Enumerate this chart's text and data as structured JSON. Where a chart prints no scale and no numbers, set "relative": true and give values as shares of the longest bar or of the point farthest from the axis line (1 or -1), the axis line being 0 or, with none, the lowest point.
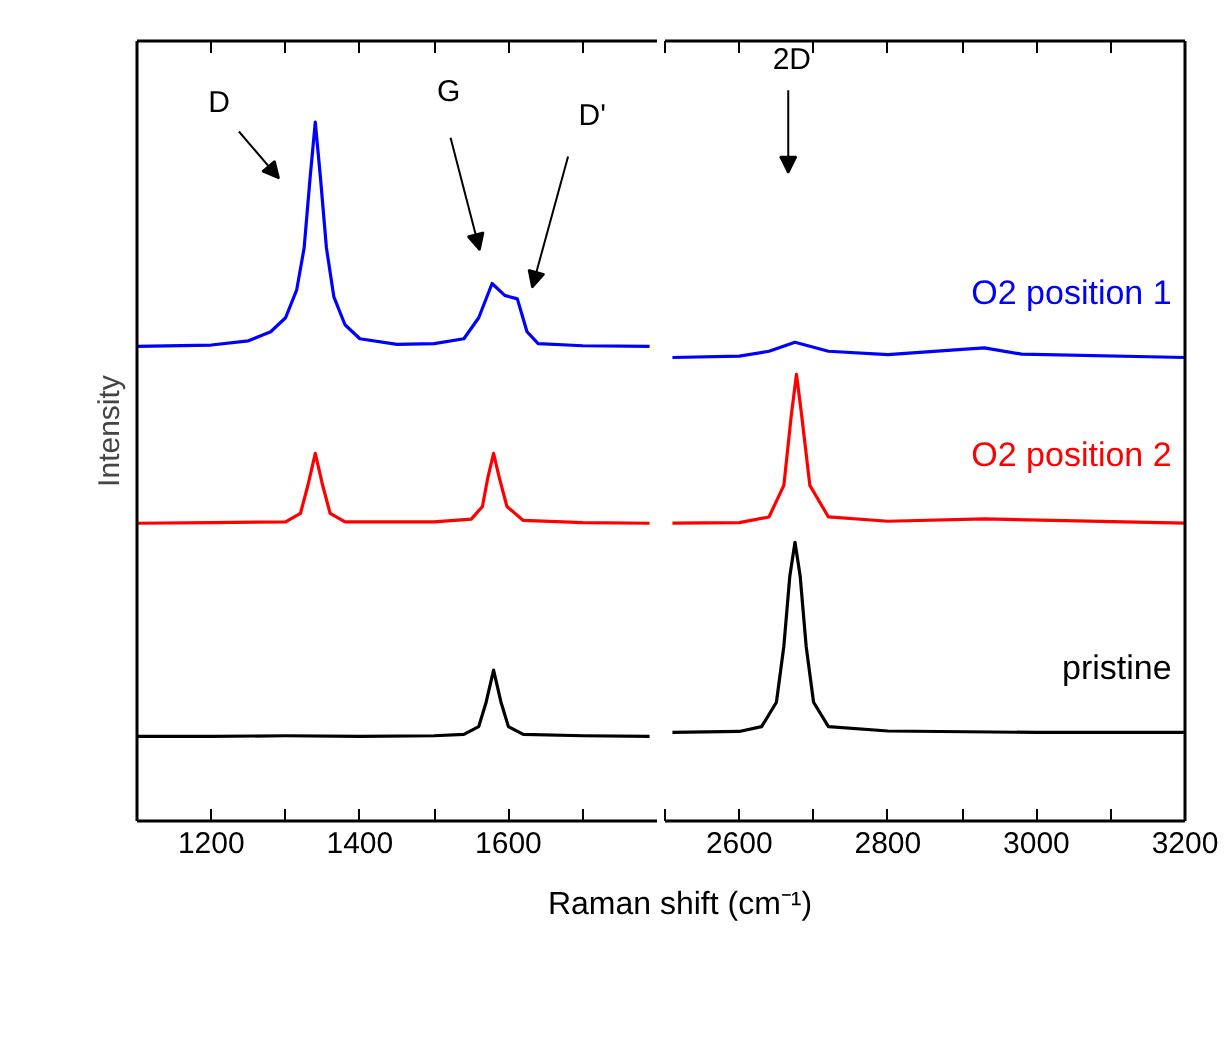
{
  "chart_data": [
    {
      "type": "line",
      "relative": true,
      "ylabel": "Intensity",
      "tick_labels": "x",
      "xlim": [
        1100,
        1800
      ],
      "xticks": [
        {
          "value": 1100,
          "label": null
        },
        1200,
        {
          "value": 1300,
          "label": null
        },
        1400,
        {
          "value": 1500,
          "label": null
        },
        1600,
        {
          "value": 1700,
          "label": null
        }
      ],
      "series": [
        {
          "color": "#000000",
          "x": [
            1100,
            1200,
            1300,
            1400,
            1500,
            1540,
            1560,
            1570,
            1580,
            1590,
            1600,
            1620,
            1700,
            1790
          ],
          "values": [
            0.121,
            0.121,
            0.122,
            0.121,
            0.122,
            0.124,
            0.135,
            0.17,
            0.216,
            0.17,
            0.135,
            0.124,
            0.122,
            0.121
          ]
        },
        {
          "color": "#ff0000",
          "x": [
            1100,
            1200,
            1300,
            1320,
            1330,
            1340,
            1350,
            1360,
            1380,
            1500,
            1550,
            1565,
            1572,
            1580,
            1588,
            1598,
            1620,
            1700,
            1790
          ],
          "values": [
            0.426,
            0.427,
            0.428,
            0.44,
            0.48,
            0.526,
            0.48,
            0.44,
            0.428,
            0.428,
            0.432,
            0.45,
            0.49,
            0.526,
            0.49,
            0.45,
            0.43,
            0.427,
            0.426
          ]
        },
        {
          "color": "#0000ff",
          "x": [
            1100,
            1200,
            1250,
            1280,
            1300,
            1315,
            1325,
            1333,
            1340,
            1347,
            1355,
            1365,
            1380,
            1400,
            1450,
            1500,
            1540,
            1560,
            1578,
            1595,
            1612,
            1625,
            1640,
            1700,
            1790
          ],
          "values": [
            0.679,
            0.681,
            0.687,
            0.7,
            0.72,
            0.76,
            0.82,
            0.92,
            1.0,
            0.92,
            0.82,
            0.75,
            0.71,
            0.69,
            0.682,
            0.683,
            0.69,
            0.72,
            0.769,
            0.752,
            0.747,
            0.7,
            0.683,
            0.68,
            0.679
          ]
        }
      ],
      "annotations": [
        "D",
        "G",
        "D'"
      ]
    },
    {
      "type": "line",
      "relative": true,
      "xlabel": "Raman shift (cm⁻¹)",
      "tick_labels": "x",
      "xlim": [
        2500,
        3200
      ],
      "xticks": [
        {
          "value": 2500,
          "label": null
        },
        2600,
        {
          "value": 2700,
          "label": null
        },
        2800,
        {
          "value": 2900,
          "label": null
        },
        3000,
        {
          "value": 3100,
          "label": null
        },
        3200
      ],
      "series": [
        {
          "name": "pristine",
          "color": "#000000",
          "x": [
            2510,
            2600,
            2630,
            2650,
            2660,
            2668,
            2675,
            2682,
            2690,
            2700,
            2720,
            2800,
            3000,
            3200
          ],
          "values": [
            0.185,
            0.187,
            0.197,
            0.248,
            0.365,
            0.511,
            0.582,
            0.511,
            0.365,
            0.248,
            0.197,
            0.188,
            0.185,
            0.185
          ]
        },
        {
          "name": "O2 position 2",
          "color": "#ff0000",
          "x": [
            2510,
            2600,
            2640,
            2660,
            2670,
            2677,
            2684,
            2695,
            2720,
            2800,
            2930,
            3200
          ],
          "values": [
            0.622,
            0.623,
            0.635,
            0.701,
            0.847,
            0.933,
            0.847,
            0.701,
            0.635,
            0.626,
            0.631,
            0.622
          ]
        },
        {
          "name": "O2 position 1",
          "color": "#0000ff",
          "x": [
            2510,
            2600,
            2640,
            2675,
            2720,
            2800,
            2900,
            2930,
            2980,
            3200
          ],
          "values": [
            0.968,
            0.971,
            0.981,
            1.0,
            0.981,
            0.974,
            0.985,
            0.988,
            0.975,
            0.968
          ]
        }
      ],
      "annotations": [
        "2D"
      ]
    }
  ]
}
